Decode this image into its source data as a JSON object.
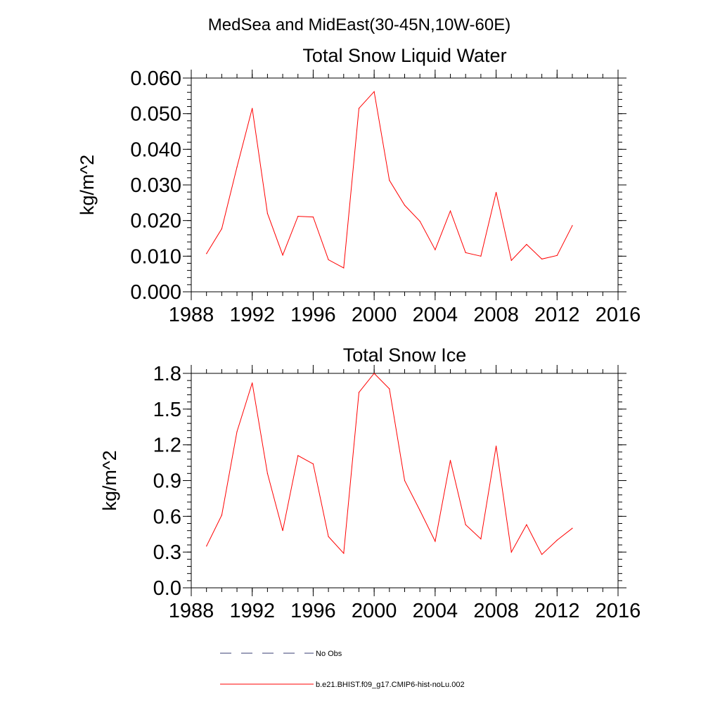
{
  "figure": {
    "main_title": "MedSea and MidEast(30-45N,10W-60E)"
  },
  "chart_data": [
    {
      "type": "line",
      "title": "Total Snow Liquid Water",
      "xlabel": "",
      "ylabel": "kg/m^2",
      "xlim": [
        1988,
        2016
      ],
      "ylim": [
        0.0,
        0.06
      ],
      "x_ticks": [
        1988,
        1992,
        1996,
        2000,
        2004,
        2008,
        2012,
        2016
      ],
      "y_ticks": [
        0.0,
        0.01,
        0.02,
        0.03,
        0.04,
        0.05,
        0.06
      ],
      "y_tick_labels": [
        "0.000",
        "0.010",
        "0.020",
        "0.030",
        "0.040",
        "0.050",
        "0.060"
      ],
      "y_minor_step": 0.002,
      "x_minor_step": 1,
      "grid": false,
      "series": [
        {
          "name": "b.e21.BHIST.f09_g17.CMIP6-hist-noLu.002",
          "color": "#ff0000",
          "x": [
            1989,
            1990,
            1991,
            1992,
            1993,
            1994,
            1995,
            1996,
            1997,
            1998,
            1999,
            2000,
            2001,
            2002,
            2003,
            2004,
            2005,
            2006,
            2007,
            2008,
            2009,
            2010,
            2011,
            2012,
            2013
          ],
          "values": [
            0.0107,
            0.0177,
            0.035,
            0.0515,
            0.022,
            0.0103,
            0.0212,
            0.021,
            0.009,
            0.0067,
            0.0515,
            0.0562,
            0.0313,
            0.0243,
            0.0198,
            0.0118,
            0.0227,
            0.011,
            0.01,
            0.0279,
            0.0088,
            0.0133,
            0.0092,
            0.0102,
            0.0186
          ]
        }
      ]
    },
    {
      "type": "line",
      "title": "Total Snow Ice",
      "xlabel": "",
      "ylabel": "kg/m^2",
      "xlim": [
        1988,
        2016
      ],
      "ylim": [
        0.0,
        1.8
      ],
      "x_ticks": [
        1988,
        1992,
        1996,
        2000,
        2004,
        2008,
        2012,
        2016
      ],
      "y_ticks": [
        0.0,
        0.3,
        0.6,
        0.9,
        1.2,
        1.5,
        1.8
      ],
      "y_tick_labels": [
        "0.0",
        "0.3",
        "0.6",
        "0.9",
        "1.2",
        "1.5",
        "1.8"
      ],
      "y_minor_step": 0.06,
      "x_minor_step": 1,
      "grid": false,
      "series": [
        {
          "name": "b.e21.BHIST.f09_g17.CMIP6-hist-noLu.002",
          "color": "#ff0000",
          "x": [
            1989,
            1990,
            1991,
            1992,
            1993,
            1994,
            1995,
            1996,
            1997,
            1998,
            1999,
            2000,
            2001,
            2002,
            2003,
            2004,
            2005,
            2006,
            2007,
            2008,
            2009,
            2010,
            2011,
            2012,
            2013
          ],
          "values": [
            0.35,
            0.61,
            1.31,
            1.72,
            0.96,
            0.48,
            1.11,
            1.04,
            0.43,
            0.29,
            1.64,
            1.8,
            1.67,
            0.9,
            0.65,
            0.39,
            1.07,
            0.53,
            0.41,
            1.19,
            0.3,
            0.53,
            0.28,
            0.4,
            0.5
          ]
        }
      ]
    }
  ],
  "legend": {
    "placement": "bottom",
    "items": [
      {
        "label": "No Obs",
        "color": "#3a3f73",
        "style": "dashed"
      },
      {
        "label": "b.e21.BHIST.f09_g17.CMIP6-hist-noLu.002",
        "color": "#ff0000",
        "style": "solid"
      }
    ]
  }
}
